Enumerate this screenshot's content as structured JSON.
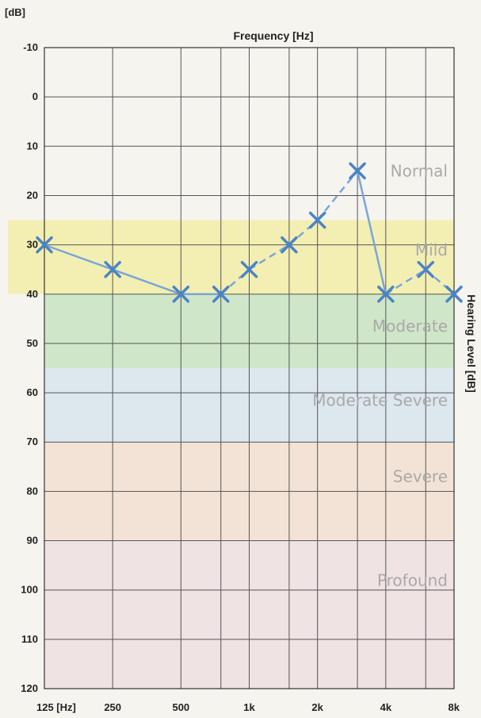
{
  "chart_data": {
    "type": "line",
    "xlabel": "Frequency [Hz]",
    "ylabel": "Hearing Level [dB]",
    "yunit_label": "[dB]",
    "y_axis_inverted": true,
    "ylim": [
      -10,
      120
    ],
    "y_ticks": [
      "-10",
      "0",
      "10",
      "20",
      "30",
      "40",
      "50",
      "60",
      "70",
      "80",
      "90",
      "100",
      "110",
      "120"
    ],
    "x_scale": "log2",
    "xlim": [
      125,
      8000
    ],
    "x_ticks": [
      {
        "value": 125,
        "label": "125 [Hz]"
      },
      {
        "value": 250,
        "label": "250"
      },
      {
        "value": 500,
        "label": "500"
      },
      {
        "value": 1000,
        "label": "1k"
      },
      {
        "value": 2000,
        "label": "2k"
      },
      {
        "value": 4000,
        "label": "4k"
      },
      {
        "value": 8000,
        "label": "8k"
      }
    ],
    "x_gridlines": [
      125,
      250,
      500,
      750,
      1000,
      1500,
      2000,
      3000,
      4000,
      6000,
      8000
    ],
    "grid": true,
    "bands": [
      {
        "label": "Normal",
        "from": -10,
        "to": 25,
        "color": "#f6f4ef"
      },
      {
        "label": "Mild",
        "from": 25,
        "to": 40,
        "color": "#f3efb2"
      },
      {
        "label": "Moderate",
        "from": 40,
        "to": 55,
        "color": "#cfe6c8"
      },
      {
        "label": "Moderate Severe",
        "from": 55,
        "to": 70,
        "color": "#dde7ee"
      },
      {
        "label": "Severe",
        "from": 70,
        "to": 90,
        "color": "#f3e3d6"
      },
      {
        "label": "Profound",
        "from": 90,
        "to": 120,
        "color": "#efe3e4"
      }
    ],
    "series": [
      {
        "marker": "x",
        "color": "#4a84c6",
        "points": [
          {
            "x": 125,
            "y": 30,
            "seg": "solid"
          },
          {
            "x": 250,
            "y": 35,
            "seg": "solid"
          },
          {
            "x": 500,
            "y": 40,
            "seg": "solid"
          },
          {
            "x": 750,
            "y": 40,
            "seg": "solid"
          },
          {
            "x": 1000,
            "y": 35,
            "seg": "dashed"
          },
          {
            "x": 1500,
            "y": 30,
            "seg": "dashed"
          },
          {
            "x": 2000,
            "y": 25,
            "seg": "dashed"
          },
          {
            "x": 3000,
            "y": 15,
            "seg": "dashed"
          },
          {
            "x": 4000,
            "y": 40,
            "seg": "solid"
          },
          {
            "x": 6000,
            "y": 35,
            "seg": "dashed"
          },
          {
            "x": 8000,
            "y": 40,
            "seg": "dashed"
          }
        ]
      }
    ]
  }
}
